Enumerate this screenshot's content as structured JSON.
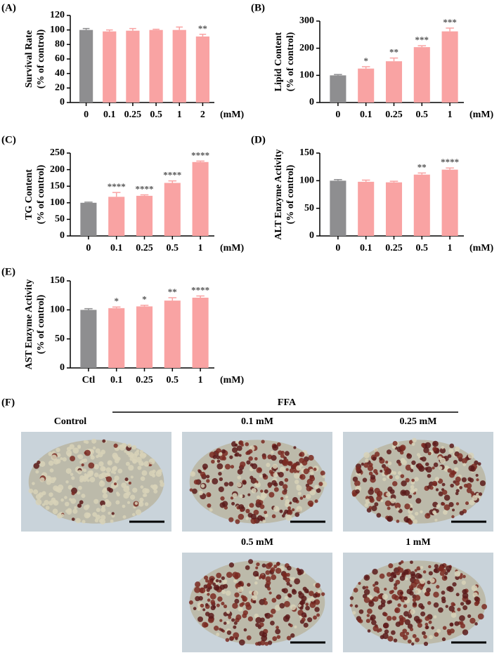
{
  "chart_data": [
    {
      "type": "bar",
      "panel": "(A)",
      "ylabel": [
        "Survival Rate",
        "(% of control)"
      ],
      "xlabel": "(mM)",
      "categories": [
        "0",
        "0.1",
        "0.25",
        "0.5",
        "1",
        "2"
      ],
      "values": [
        100,
        98,
        99,
        100,
        100,
        91
      ],
      "errors": [
        2,
        2,
        3,
        1,
        4,
        3
      ],
      "annotations": [
        null,
        null,
        null,
        null,
        null,
        "**"
      ],
      "colors": [
        "#8e8e90",
        "#f9a3a3",
        "#f9a3a3",
        "#f9a3a3",
        "#f9a3a3",
        "#f9a3a3"
      ],
      "ylim": [
        0,
        120
      ],
      "yticks": [
        0,
        20,
        40,
        60,
        80,
        100,
        120
      ]
    },
    {
      "type": "bar",
      "panel": "(B)",
      "ylabel": [
        "Lipid Content",
        "(% of control)"
      ],
      "xlabel": "(mM)",
      "categories": [
        "0",
        "0.1",
        "0.25",
        "0.5",
        "1"
      ],
      "values": [
        100,
        125,
        152,
        204,
        262
      ],
      "errors": [
        3,
        7,
        12,
        5,
        12
      ],
      "annotations": [
        null,
        "*",
        "**",
        "***",
        "***"
      ],
      "colors": [
        "#8e8e90",
        "#f9a3a3",
        "#f9a3a3",
        "#f9a3a3",
        "#f9a3a3"
      ],
      "ylim": [
        0,
        300
      ],
      "yticks": [
        0,
        100,
        200,
        300
      ]
    },
    {
      "type": "bar",
      "panel": "(C)",
      "ylabel": [
        "TG Content",
        "(% of control)"
      ],
      "xlabel": "(mM)",
      "categories": [
        "0",
        "0.1",
        "0.25",
        "0.5",
        "1"
      ],
      "values": [
        100,
        118,
        121,
        160,
        223
      ],
      "errors": [
        2,
        13,
        3,
        6,
        3
      ],
      "annotations": [
        null,
        "****",
        "****",
        "****",
        "****"
      ],
      "colors": [
        "#8e8e90",
        "#f9a3a3",
        "#f9a3a3",
        "#f9a3a3",
        "#f9a3a3"
      ],
      "ylim": [
        0,
        250
      ],
      "yticks": [
        0,
        50,
        100,
        150,
        200,
        250
      ]
    },
    {
      "type": "bar",
      "panel": "(D)",
      "ylabel": [
        "ALT Enzyme Activity",
        "(% of control)"
      ],
      "xlabel": "(mM)",
      "categories": [
        "0",
        "0.1",
        "0.25",
        "0.5",
        "1"
      ],
      "values": [
        100,
        98,
        97,
        111,
        120
      ],
      "errors": [
        2,
        3,
        2,
        3,
        3
      ],
      "annotations": [
        null,
        null,
        null,
        "**",
        "****"
      ],
      "colors": [
        "#8e8e90",
        "#f9a3a3",
        "#f9a3a3",
        "#f9a3a3",
        "#f9a3a3"
      ],
      "ylim": [
        0,
        150
      ],
      "yticks": [
        0,
        50,
        100,
        150
      ]
    },
    {
      "type": "bar",
      "panel": "(E)",
      "ylabel": [
        "AST Enzyme Activity",
        "(% of control)"
      ],
      "xlabel": "(mM)",
      "categories": [
        "Ctl",
        "0.1",
        "0.25",
        "0.5",
        "1"
      ],
      "values": [
        100,
        103,
        106,
        116,
        121
      ],
      "errors": [
        2,
        2,
        2,
        5,
        3
      ],
      "annotations": [
        null,
        "*",
        "*",
        "**",
        "****"
      ],
      "colors": [
        "#8e8e90",
        "#f9a3a3",
        "#f9a3a3",
        "#f9a3a3",
        "#f9a3a3"
      ],
      "ylim": [
        0,
        150
      ],
      "yticks": [
        0,
        50,
        100,
        150
      ]
    }
  ],
  "panel_f": {
    "label": "(F)",
    "group": "FFA",
    "images": [
      "Control",
      "0.1 mM",
      "0.25 mM",
      "0.5 mM",
      "1 mM"
    ]
  }
}
